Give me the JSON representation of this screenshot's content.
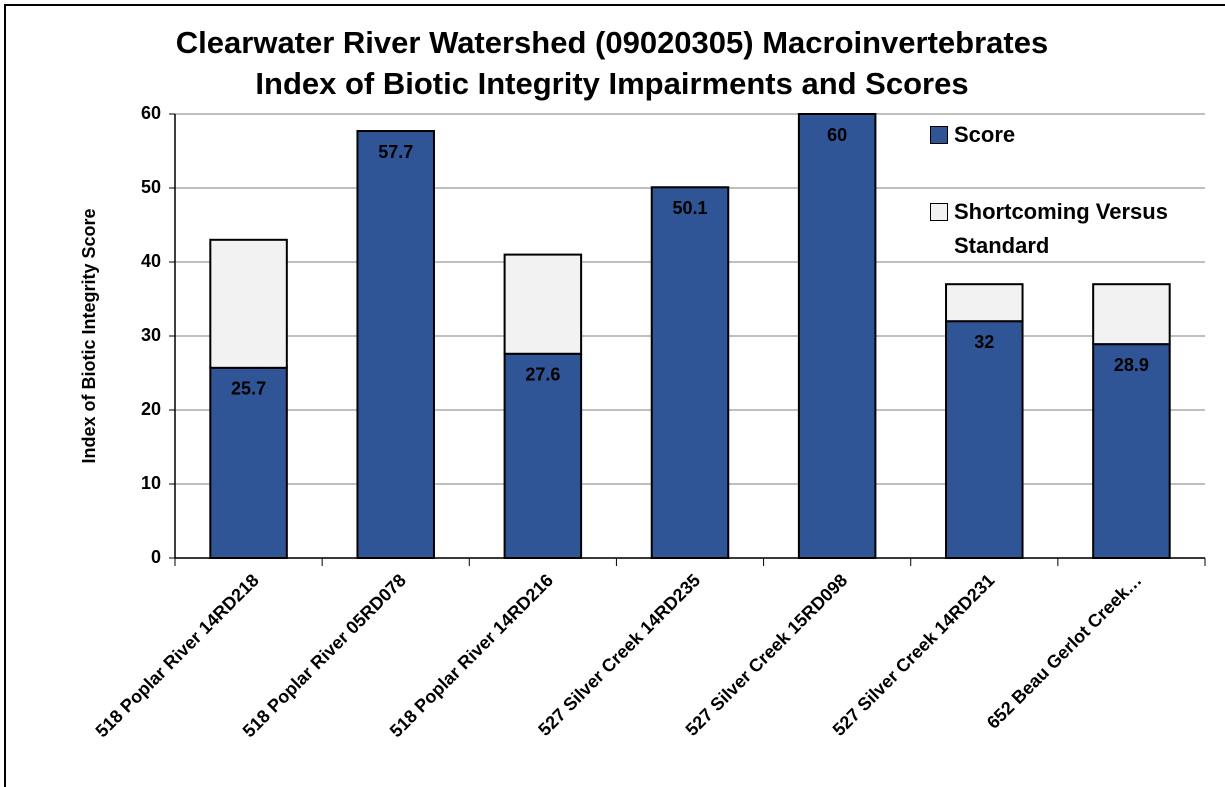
{
  "chart_data": {
    "type": "stacked_bar",
    "title": [
      "Clearwater River Watershed (09020305) Macroinvertebrates",
      "Index of Biotic Integrity Impairments and Scores"
    ],
    "y_label": "Index of Biotic Integrity Score",
    "categories": [
      "518 Poplar River 14RD218",
      "518 Poplar River 05RD078",
      "518 Poplar River 14RD216",
      "527 Silver Creek 14RD235",
      "527 Silver Creek 15RD098",
      "527 Silver Creek 14RD231",
      "652 Beau Gerlot Creek…"
    ],
    "series": [
      {
        "name": "Score",
        "color": "#2f5597",
        "values": [
          25.7,
          57.7,
          27.6,
          50.1,
          60,
          32,
          28.9
        ]
      },
      {
        "name": "Shortcoming Versus Standard",
        "color": "#f2f2f2",
        "values": [
          17.3,
          0,
          13.4,
          0,
          0,
          5,
          8.1
        ]
      }
    ],
    "ylim": [
      0,
      60
    ],
    "yticks": [
      0,
      10,
      20,
      30,
      40,
      50,
      60
    ],
    "grid": true,
    "legend": "upper right"
  }
}
